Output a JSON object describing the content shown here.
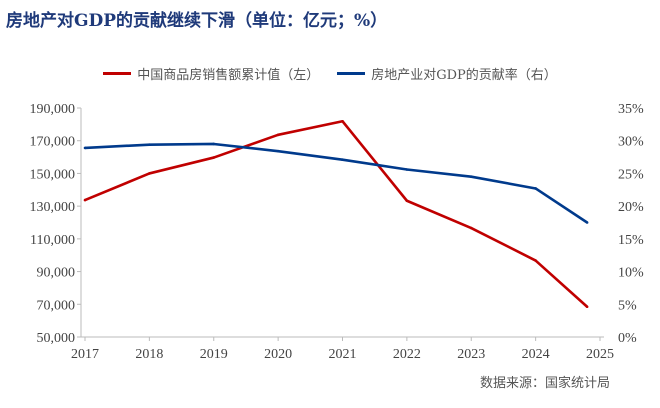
{
  "title": "房地产对GDP的贡献继续下滑（单位：亿元；%）",
  "source": "数据来源：国家统计局",
  "chart_data": {
    "type": "line",
    "title": "房地产对GDP的贡献继续下滑（单位：亿元；%）",
    "legend_position": "top",
    "grid": false,
    "x_ticks": [
      "2017",
      "2018",
      "2019",
      "2020",
      "2021",
      "2022",
      "2023",
      "2024",
      "2025"
    ],
    "xlim": [
      2017,
      2025
    ],
    "left_axis": {
      "ylim": [
        50000,
        190000
      ],
      "ticks": [
        "50,000",
        "70,000",
        "90,000",
        "110,000",
        "130,000",
        "150,000",
        "170,000",
        "190,000"
      ]
    },
    "right_axis": {
      "ylim": [
        0,
        35
      ],
      "ticks": [
        "0%",
        "5%",
        "10%",
        "15%",
        "20%",
        "25%",
        "30%",
        "35%"
      ]
    },
    "series": [
      {
        "name": "中国商品房销售额累计值（左）",
        "axis": "left",
        "color": "#c00000",
        "x": [
          2017,
          2018,
          2019,
          2020,
          2021,
          2022,
          2023,
          2024,
          2024.8
        ],
        "values": [
          133700,
          150000,
          159700,
          173600,
          181900,
          133300,
          116600,
          96750,
          68500
        ]
      },
      {
        "name": "房地产业对GDP的贡献率（右）",
        "axis": "right",
        "color": "#003a8c",
        "x": [
          2017,
          2018,
          2019,
          2020,
          2021,
          2022,
          2023,
          2024,
          2024.8
        ],
        "values": [
          28.9,
          29.4,
          29.5,
          28.4,
          27.1,
          25.6,
          24.5,
          22.7,
          17.5
        ]
      }
    ]
  }
}
